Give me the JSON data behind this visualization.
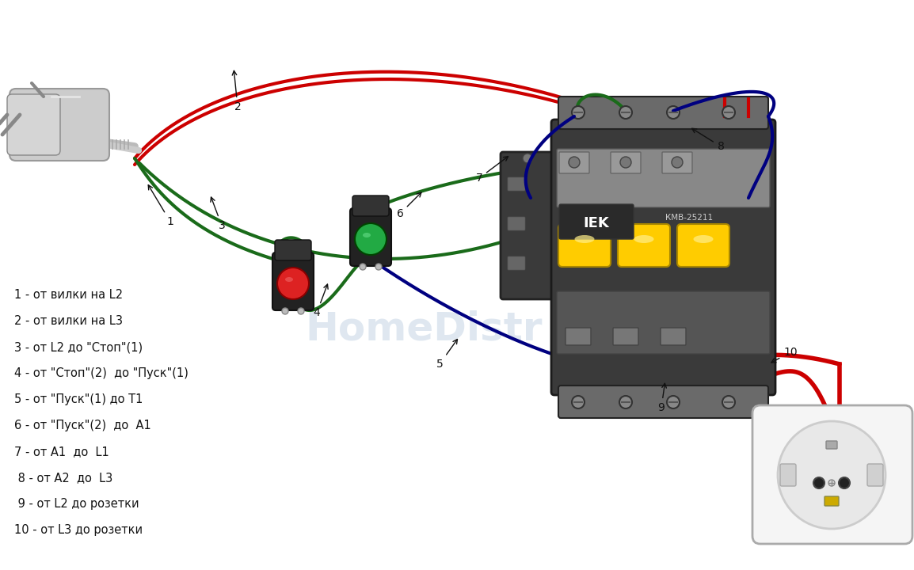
{
  "background_color": "#ffffff",
  "fig_width": 11.54,
  "fig_height": 7.2,
  "legend_items": [
    "1 - от вилки на L2",
    "2 - от вилки на L3",
    "3 - от L2 до \"Стоп\"(1)",
    "4 - от \"Стоп\"(2)  до \"Пуск\"(1)",
    "5 - от \"Пуск\"(1) до Т1",
    "6 - от \"Пуск\"(2)  до  А1",
    "7 - от А1  до  L1",
    " 8 - от А2  до  L3",
    " 9 - от L2 до розетки",
    "10 - от L3 до розетки"
  ],
  "wire_red": "#cc0000",
  "wire_green": "#1a6b1a",
  "wire_blue": "#000080",
  "label_color": "#111111",
  "watermark_color": "#c5d5e5",
  "plug_color": "#cccccc",
  "plug_dark": "#999999",
  "contactor_body": "#444444",
  "contactor_top": "#888888",
  "contactor_yellow": "#ffcc00",
  "socket_color": "#f5f5f5",
  "socket_border": "#aaaaaa",
  "button_body": "#222222",
  "button_red": "#dd2222",
  "button_green": "#22aa44"
}
